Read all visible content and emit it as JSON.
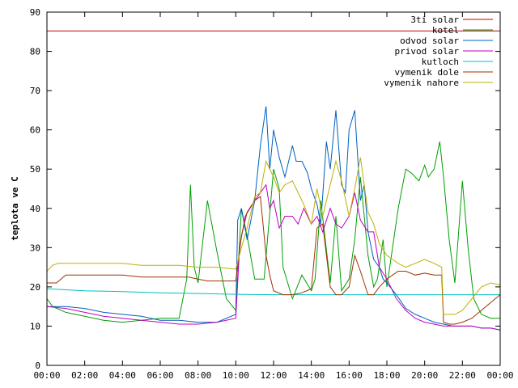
{
  "chart_data": {
    "type": "line",
    "title": "",
    "xlabel": "",
    "ylabel": "teplota ve C",
    "xlim": [
      0,
      24
    ],
    "ylim": [
      0,
      90
    ],
    "x_ticks": [
      "00:00",
      "02:00",
      "04:00",
      "06:00",
      "08:00",
      "10:00",
      "12:00",
      "14:00",
      "16:00",
      "18:00",
      "20:00",
      "22:00",
      "00:00"
    ],
    "y_ticks": [
      "0",
      "10",
      "20",
      "30",
      "40",
      "50",
      "60",
      "70",
      "80",
      "90"
    ],
    "grid": false,
    "legend_position": "top-right",
    "series": [
      {
        "name": "3ti solar",
        "color": "#c00000",
        "x": [
          0,
          24
        ],
        "y": [
          85.2,
          85.2
        ]
      },
      {
        "name": "kotel",
        "color": "#00a000",
        "x": [
          0,
          0.3,
          1,
          2,
          3,
          4,
          5,
          6,
          7,
          7.4,
          7.6,
          7.8,
          8,
          8.5,
          9,
          9.5,
          10,
          10.3,
          10.6,
          11,
          11.5,
          12,
          12.3,
          12.5,
          13,
          13.5,
          14,
          14.2,
          14.5,
          15,
          15.3,
          15.6,
          16,
          16.3,
          16.6,
          17,
          17.3,
          17.5,
          17.8,
          18,
          18.3,
          18.6,
          19,
          19.3,
          19.7,
          20,
          20.2,
          20.5,
          20.8,
          21,
          21.3,
          21.6,
          22,
          22.3,
          22.6,
          23,
          23.5,
          24
        ],
        "y": [
          17,
          15,
          13.5,
          12.5,
          11.5,
          11,
          11.5,
          12,
          12,
          22,
          46,
          25,
          21,
          42,
          29,
          17,
          14,
          40,
          33,
          22,
          22,
          50,
          45,
          25,
          17,
          23,
          19,
          22,
          42,
          21,
          38,
          19,
          22,
          32,
          48,
          28,
          20,
          22,
          32,
          20,
          30,
          40,
          50,
          49,
          47,
          51,
          48,
          50,
          57,
          48,
          32,
          21,
          47,
          30,
          17,
          13,
          12,
          12
        ]
      },
      {
        "name": "odvod solar",
        "color": "#0060c0",
        "x": [
          0,
          1,
          2,
          3,
          4,
          5,
          6,
          7,
          8,
          9,
          10,
          10.1,
          10.3,
          10.6,
          11,
          11.3,
          11.6,
          11.8,
          12,
          12.3,
          12.6,
          13,
          13.2,
          13.5,
          13.8,
          14,
          14.3,
          14.5,
          14.8,
          15,
          15.3,
          15.6,
          15.8,
          16,
          16.3,
          16.6,
          16.8,
          17,
          17.3,
          17.6,
          17.8,
          18,
          18.5,
          19,
          19.5,
          20,
          20.5,
          21,
          21.5,
          22,
          22.5,
          23,
          23.5,
          24
        ],
        "y": [
          15,
          15,
          14.5,
          13.5,
          13,
          12.5,
          11.5,
          11.5,
          11,
          11,
          13,
          37,
          40,
          32,
          42,
          56,
          66,
          50,
          60,
          53,
          48,
          56,
          52,
          52,
          49,
          45,
          41,
          36,
          57,
          50,
          65,
          46,
          44,
          60,
          65,
          42,
          46,
          34,
          27,
          25,
          22,
          21,
          18,
          14.5,
          13,
          12,
          11,
          10.5,
          10,
          10,
          10,
          9.5,
          9.5,
          9
        ]
      },
      {
        "name": "privod solar",
        "color": "#c000c0",
        "x": [
          0,
          1,
          2,
          3,
          4,
          5,
          6,
          7,
          8,
          9,
          10,
          10.2,
          10.5,
          11,
          11.3,
          11.6,
          11.8,
          12,
          12.3,
          12.6,
          13,
          13.3,
          13.6,
          14,
          14.3,
          14.6,
          15,
          15.3,
          15.6,
          16,
          16.3,
          16.6,
          17,
          17.3,
          17.6,
          18,
          18.5,
          19,
          19.5,
          20,
          20.5,
          21,
          21.5,
          22,
          22.5,
          23,
          23.5,
          24
        ],
        "y": [
          15,
          14.5,
          13.5,
          12.5,
          12,
          11.5,
          11,
          10.5,
          10.5,
          11,
          12,
          30,
          38,
          42,
          44,
          46,
          40,
          42,
          35,
          38,
          38,
          36,
          40,
          36,
          38,
          34,
          40,
          36,
          35,
          38,
          44,
          37,
          34,
          34,
          25,
          22,
          17,
          14,
          12,
          11,
          10.5,
          10,
          10,
          10,
          10,
          9.5,
          9.5,
          9
        ]
      },
      {
        "name": "kutloch",
        "color": "#00c0c0",
        "x": [
          0,
          2,
          4,
          6,
          8,
          10,
          12,
          14,
          16,
          18,
          20,
          22,
          24
        ],
        "y": [
          19.5,
          19,
          18.8,
          18.5,
          18.3,
          18.1,
          18,
          18,
          18,
          18,
          18,
          18,
          18
        ]
      },
      {
        "name": "vymenik dole",
        "color": "#a03000",
        "x": [
          0,
          0.5,
          1,
          2,
          3,
          4,
          5,
          6,
          7,
          7.5,
          8,
          8.5,
          9,
          10,
          10.3,
          10.6,
          11,
          11.3,
          11.6,
          11.8,
          12,
          12.5,
          13,
          13.5,
          14,
          14.3,
          14.6,
          15,
          15.3,
          15.6,
          16,
          16.3,
          16.6,
          17,
          17.3,
          17.6,
          18,
          18.3,
          18.6,
          19,
          19.5,
          20,
          20.5,
          20.9,
          21,
          21.3,
          21.6,
          22,
          22.5,
          23,
          23.5,
          24
        ],
        "y": [
          21,
          21,
          23,
          23,
          23,
          23,
          22.5,
          22.5,
          22.5,
          22.5,
          22,
          21.5,
          21.5,
          21.5,
          33,
          39,
          42,
          43,
          28,
          23,
          19,
          18,
          18,
          18.5,
          19.5,
          35,
          36,
          20,
          18,
          18,
          20,
          28,
          24,
          18,
          18,
          20,
          22,
          23,
          24,
          24,
          23,
          23.5,
          23,
          23,
          11,
          10.5,
          10.5,
          11,
          12,
          14,
          16,
          18
        ]
      },
      {
        "name": "vymenik nahore",
        "color": "#c0b000",
        "x": [
          0,
          0.3,
          0.6,
          1,
          2,
          3,
          4,
          5,
          6,
          7,
          8,
          9,
          10,
          10.3,
          10.6,
          11,
          11.3,
          11.6,
          11.8,
          12,
          12.3,
          12.6,
          13,
          13.3,
          13.6,
          14,
          14.3,
          14.6,
          15,
          15.3,
          15.6,
          16,
          16.3,
          16.6,
          17,
          17.3,
          17.6,
          18,
          18.3,
          18.6,
          19,
          19.5,
          20,
          20.5,
          20.9,
          21,
          21.3,
          21.6,
          22,
          22.5,
          23,
          23.5,
          24
        ],
        "y": [
          24,
          25.5,
          26,
          26,
          26,
          26,
          26,
          25.5,
          25.5,
          25.5,
          25,
          25,
          24.5,
          30,
          35,
          43,
          44,
          52,
          50,
          48,
          44,
          46,
          47,
          44,
          41,
          36,
          45,
          38,
          46,
          52,
          47,
          38,
          45,
          53,
          39,
          36,
          31,
          28,
          27,
          26,
          25,
          26,
          27,
          26,
          25,
          13,
          13,
          13,
          14,
          17,
          20,
          21,
          20.5
        ]
      }
    ]
  }
}
